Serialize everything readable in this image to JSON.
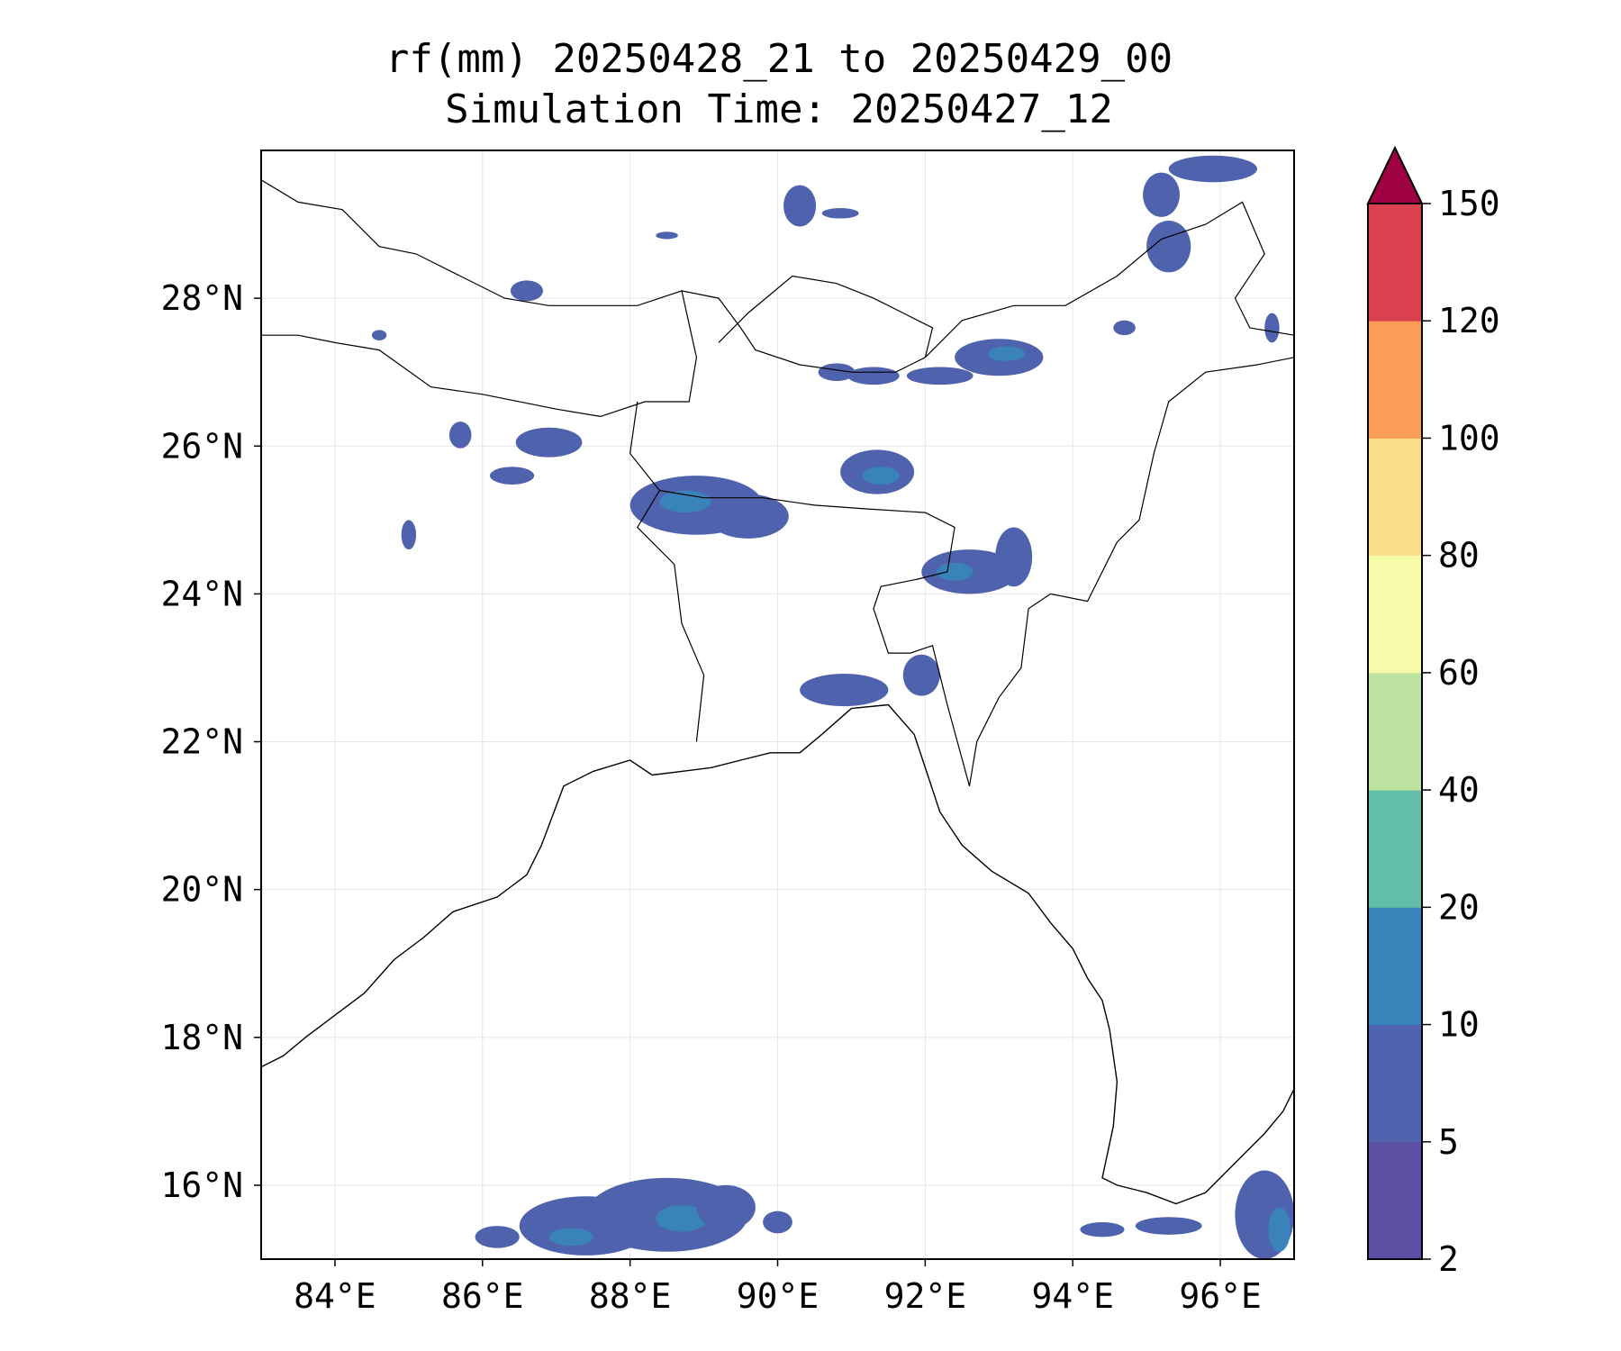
{
  "title": {
    "line1": "rf(mm) 20250428_21 to 20250429_00",
    "line2": "Simulation Time: 20250427_12"
  },
  "map": {
    "lon_range": [
      83,
      97
    ],
    "lat_range": [
      15,
      30
    ],
    "grid": true,
    "lon_ticks": [
      {
        "value": 84,
        "label": "84°E"
      },
      {
        "value": 86,
        "label": "86°E"
      },
      {
        "value": 88,
        "label": "88°E"
      },
      {
        "value": 90,
        "label": "90°E"
      },
      {
        "value": 92,
        "label": "92°E"
      },
      {
        "value": 94,
        "label": "94°E"
      },
      {
        "value": 96,
        "label": "96°E"
      }
    ],
    "lat_ticks": [
      {
        "value": 16,
        "label": "16°N"
      },
      {
        "value": 18,
        "label": "18°N"
      },
      {
        "value": 20,
        "label": "20°N"
      },
      {
        "value": 22,
        "label": "22°N"
      },
      {
        "value": 24,
        "label": "24°N"
      },
      {
        "value": 26,
        "label": "26°N"
      },
      {
        "value": 28,
        "label": "28°N"
      }
    ],
    "coastline": [
      [
        83.0,
        17.6
      ],
      [
        83.3,
        17.75
      ],
      [
        83.6,
        18.0
      ],
      [
        84.0,
        18.3
      ],
      [
        84.4,
        18.6
      ],
      [
        84.8,
        19.05
      ],
      [
        85.2,
        19.35
      ],
      [
        85.6,
        19.7
      ],
      [
        86.2,
        19.9
      ],
      [
        86.6,
        20.2
      ],
      [
        86.8,
        20.6
      ],
      [
        86.95,
        21.0
      ],
      [
        87.1,
        21.4
      ],
      [
        87.5,
        21.6
      ],
      [
        88.0,
        21.75
      ],
      [
        88.3,
        21.55
      ],
      [
        88.7,
        21.6
      ],
      [
        89.1,
        21.65
      ],
      [
        89.5,
        21.75
      ],
      [
        89.9,
        21.85
      ],
      [
        90.3,
        21.85
      ],
      [
        90.6,
        22.1
      ],
      [
        91.0,
        22.45
      ],
      [
        91.5,
        22.5
      ],
      [
        91.85,
        22.1
      ],
      [
        92.05,
        21.5
      ],
      [
        92.2,
        21.05
      ],
      [
        92.5,
        20.6
      ],
      [
        92.9,
        20.25
      ],
      [
        93.4,
        19.95
      ],
      [
        93.7,
        19.55
      ],
      [
        94.0,
        19.2
      ],
      [
        94.2,
        18.8
      ],
      [
        94.4,
        18.5
      ],
      [
        94.5,
        18.1
      ],
      [
        94.6,
        17.4
      ],
      [
        94.55,
        16.8
      ],
      [
        94.4,
        16.1
      ],
      [
        94.6,
        16.0
      ],
      [
        95.0,
        15.9
      ],
      [
        95.4,
        15.75
      ],
      [
        95.8,
        15.9
      ],
      [
        96.2,
        16.3
      ],
      [
        96.6,
        16.7
      ],
      [
        96.85,
        17.0
      ],
      [
        97.0,
        17.3
      ]
    ],
    "borders": [
      [
        [
          83.0,
          29.6
        ],
        [
          83.5,
          29.3
        ],
        [
          84.1,
          29.2
        ],
        [
          84.6,
          28.7
        ],
        [
          85.1,
          28.6
        ],
        [
          85.7,
          28.3
        ],
        [
          86.3,
          28.0
        ],
        [
          86.9,
          27.9
        ],
        [
          87.5,
          27.9
        ],
        [
          88.1,
          27.9
        ],
        [
          88.7,
          28.1
        ],
        [
          88.9,
          27.2
        ],
        [
          88.8,
          26.6
        ],
        [
          88.2,
          26.6
        ],
        [
          87.6,
          26.4
        ],
        [
          87.0,
          26.5
        ],
        [
          86.0,
          26.7
        ],
        [
          85.3,
          26.8
        ],
        [
          84.6,
          27.3
        ],
        [
          84.0,
          27.4
        ],
        [
          83.5,
          27.5
        ],
        [
          83.0,
          27.5
        ]
      ],
      [
        [
          88.7,
          28.1
        ],
        [
          89.2,
          28.0
        ],
        [
          89.5,
          27.6
        ],
        [
          89.7,
          27.3
        ],
        [
          90.3,
          27.1
        ],
        [
          91.0,
          27.0
        ],
        [
          91.6,
          27.0
        ],
        [
          92.0,
          27.2
        ],
        [
          92.1,
          27.6
        ],
        [
          91.7,
          27.8
        ],
        [
          91.3,
          28.0
        ],
        [
          90.8,
          28.2
        ],
        [
          90.2,
          28.3
        ],
        [
          89.6,
          27.8
        ],
        [
          89.2,
          27.4
        ]
      ],
      [
        [
          92.0,
          27.2
        ],
        [
          92.5,
          27.7
        ],
        [
          93.2,
          27.9
        ],
        [
          93.9,
          27.9
        ],
        [
          94.6,
          28.3
        ],
        [
          95.2,
          28.8
        ],
        [
          95.8,
          29.0
        ],
        [
          96.3,
          29.3
        ],
        [
          96.6,
          28.6
        ],
        [
          96.2,
          28.0
        ],
        [
          96.4,
          27.6
        ],
        [
          97.0,
          27.5
        ]
      ],
      [
        [
          97.0,
          27.2
        ],
        [
          96.5,
          27.1
        ],
        [
          95.8,
          27.0
        ],
        [
          95.3,
          26.6
        ],
        [
          95.1,
          25.9
        ],
        [
          94.9,
          25.0
        ],
        [
          94.6,
          24.7
        ],
        [
          94.2,
          23.9
        ],
        [
          93.7,
          24.0
        ],
        [
          93.4,
          23.8
        ],
        [
          93.3,
          23.0
        ],
        [
          93.0,
          22.6
        ],
        [
          92.7,
          22.0
        ],
        [
          92.6,
          21.4
        ]
      ],
      [
        [
          88.1,
          26.6
        ],
        [
          88.0,
          25.9
        ],
        [
          88.4,
          25.4
        ],
        [
          88.1,
          24.9
        ],
        [
          88.6,
          24.4
        ],
        [
          88.7,
          23.6
        ],
        [
          89.0,
          22.9
        ],
        [
          88.9,
          22.0
        ]
      ],
      [
        [
          88.4,
          25.4
        ],
        [
          89.0,
          25.3
        ],
        [
          89.8,
          25.3
        ],
        [
          90.5,
          25.2
        ],
        [
          91.2,
          25.15
        ],
        [
          92.0,
          25.1
        ],
        [
          92.4,
          24.9
        ],
        [
          92.3,
          24.3
        ],
        [
          91.9,
          24.2
        ],
        [
          91.4,
          24.1
        ],
        [
          91.3,
          23.8
        ],
        [
          91.5,
          23.2
        ],
        [
          91.8,
          23.2
        ],
        [
          92.1,
          23.3
        ],
        [
          92.3,
          22.5
        ],
        [
          92.6,
          21.4
        ]
      ]
    ],
    "rain_areas": [
      {
        "c": [
          88.9,
          25.2
        ],
        "r": [
          0.9,
          0.4
        ],
        "cls": 5
      },
      {
        "c": [
          88.75,
          25.25
        ],
        "r": [
          0.35,
          0.15
        ],
        "cls": 10
      },
      {
        "c": [
          89.6,
          25.05
        ],
        "r": [
          0.55,
          0.3
        ],
        "cls": 5
      },
      {
        "c": [
          91.35,
          25.65
        ],
        "r": [
          0.5,
          0.3
        ],
        "cls": 5
      },
      {
        "c": [
          91.4,
          25.6
        ],
        "r": [
          0.25,
          0.12
        ],
        "cls": 10
      },
      {
        "c": [
          92.6,
          24.3
        ],
        "r": [
          0.65,
          0.3
        ],
        "cls": 5
      },
      {
        "c": [
          92.4,
          24.3
        ],
        "r": [
          0.25,
          0.12
        ],
        "cls": 10
      },
      {
        "c": [
          93.2,
          24.5
        ],
        "r": [
          0.25,
          0.4
        ],
        "cls": 5
      },
      {
        "c": [
          90.9,
          22.7
        ],
        "r": [
          0.6,
          0.22
        ],
        "cls": 5
      },
      {
        "c": [
          91.95,
          22.9
        ],
        "r": [
          0.25,
          0.28
        ],
        "cls": 5
      },
      {
        "c": [
          93.0,
          27.2
        ],
        "r": [
          0.6,
          0.25
        ],
        "cls": 5
      },
      {
        "c": [
          93.1,
          27.25
        ],
        "r": [
          0.25,
          0.1
        ],
        "cls": 10
      },
      {
        "c": [
          92.2,
          26.95
        ],
        "r": [
          0.45,
          0.12
        ],
        "cls": 5
      },
      {
        "c": [
          91.3,
          26.95
        ],
        "r": [
          0.35,
          0.12
        ],
        "cls": 5
      },
      {
        "c": [
          90.8,
          27.0
        ],
        "r": [
          0.25,
          0.12
        ],
        "cls": 5
      },
      {
        "c": [
          86.9,
          26.05
        ],
        "r": [
          0.45,
          0.2
        ],
        "cls": 5
      },
      {
        "c": [
          86.4,
          25.6
        ],
        "r": [
          0.3,
          0.12
        ],
        "cls": 5
      },
      {
        "c": [
          85.7,
          26.15
        ],
        "r": [
          0.15,
          0.18
        ],
        "cls": 5
      },
      {
        "c": [
          85.0,
          24.8
        ],
        "r": [
          0.1,
          0.2
        ],
        "cls": 5
      },
      {
        "c": [
          86.6,
          28.1
        ],
        "r": [
          0.22,
          0.14
        ],
        "cls": 5
      },
      {
        "c": [
          84.6,
          27.5
        ],
        "r": [
          0.1,
          0.07
        ],
        "cls": 5
      },
      {
        "c": [
          90.3,
          29.25
        ],
        "r": [
          0.22,
          0.28
        ],
        "cls": 5
      },
      {
        "c": [
          90.85,
          29.15
        ],
        "r": [
          0.25,
          0.07
        ],
        "cls": 5
      },
      {
        "c": [
          88.5,
          28.85
        ],
        "r": [
          0.15,
          0.05
        ],
        "cls": 5
      },
      {
        "c": [
          95.9,
          29.75
        ],
        "r": [
          0.6,
          0.18
        ],
        "cls": 5
      },
      {
        "c": [
          95.2,
          29.4
        ],
        "r": [
          0.25,
          0.3
        ],
        "cls": 5
      },
      {
        "c": [
          95.3,
          28.7
        ],
        "r": [
          0.3,
          0.35
        ],
        "cls": 5
      },
      {
        "c": [
          96.7,
          27.6
        ],
        "r": [
          0.1,
          0.2
        ],
        "cls": 5
      },
      {
        "c": [
          94.7,
          27.6
        ],
        "r": [
          0.15,
          0.1
        ],
        "cls": 5
      },
      {
        "c": [
          88.5,
          15.6
        ],
        "r": [
          1.1,
          0.5
        ],
        "cls": 5
      },
      {
        "c": [
          87.4,
          15.45
        ],
        "r": [
          0.9,
          0.4
        ],
        "cls": 5
      },
      {
        "c": [
          88.7,
          15.55
        ],
        "r": [
          0.35,
          0.18
        ],
        "cls": 10
      },
      {
        "c": [
          87.2,
          15.3
        ],
        "r": [
          0.3,
          0.12
        ],
        "cls": 10
      },
      {
        "c": [
          89.3,
          15.7
        ],
        "r": [
          0.4,
          0.3
        ],
        "cls": 5
      },
      {
        "c": [
          90.0,
          15.5
        ],
        "r": [
          0.2,
          0.15
        ],
        "cls": 5
      },
      {
        "c": [
          86.2,
          15.3
        ],
        "r": [
          0.3,
          0.15
        ],
        "cls": 5
      },
      {
        "c": [
          96.6,
          15.6
        ],
        "r": [
          0.4,
          0.6
        ],
        "cls": 5
      },
      {
        "c": [
          96.8,
          15.4
        ],
        "r": [
          0.15,
          0.3
        ],
        "cls": 10
      },
      {
        "c": [
          95.3,
          15.45
        ],
        "r": [
          0.45,
          0.12
        ],
        "cls": 5
      },
      {
        "c": [
          94.4,
          15.4
        ],
        "r": [
          0.3,
          0.1
        ],
        "cls": 5
      }
    ]
  },
  "colorbar": {
    "levels": [
      "2",
      "5",
      "10",
      "20",
      "40",
      "60",
      "80",
      "100",
      "120",
      "150"
    ],
    "colors": [
      "#5c4fa3",
      "#4e62ad",
      "#3a82ba",
      "#62bda9",
      "#bde3a1",
      "#f5fba9",
      "#fbde8a",
      "#f99d59",
      "#d9414e",
      "#9e0142"
    ],
    "extend": "max"
  }
}
